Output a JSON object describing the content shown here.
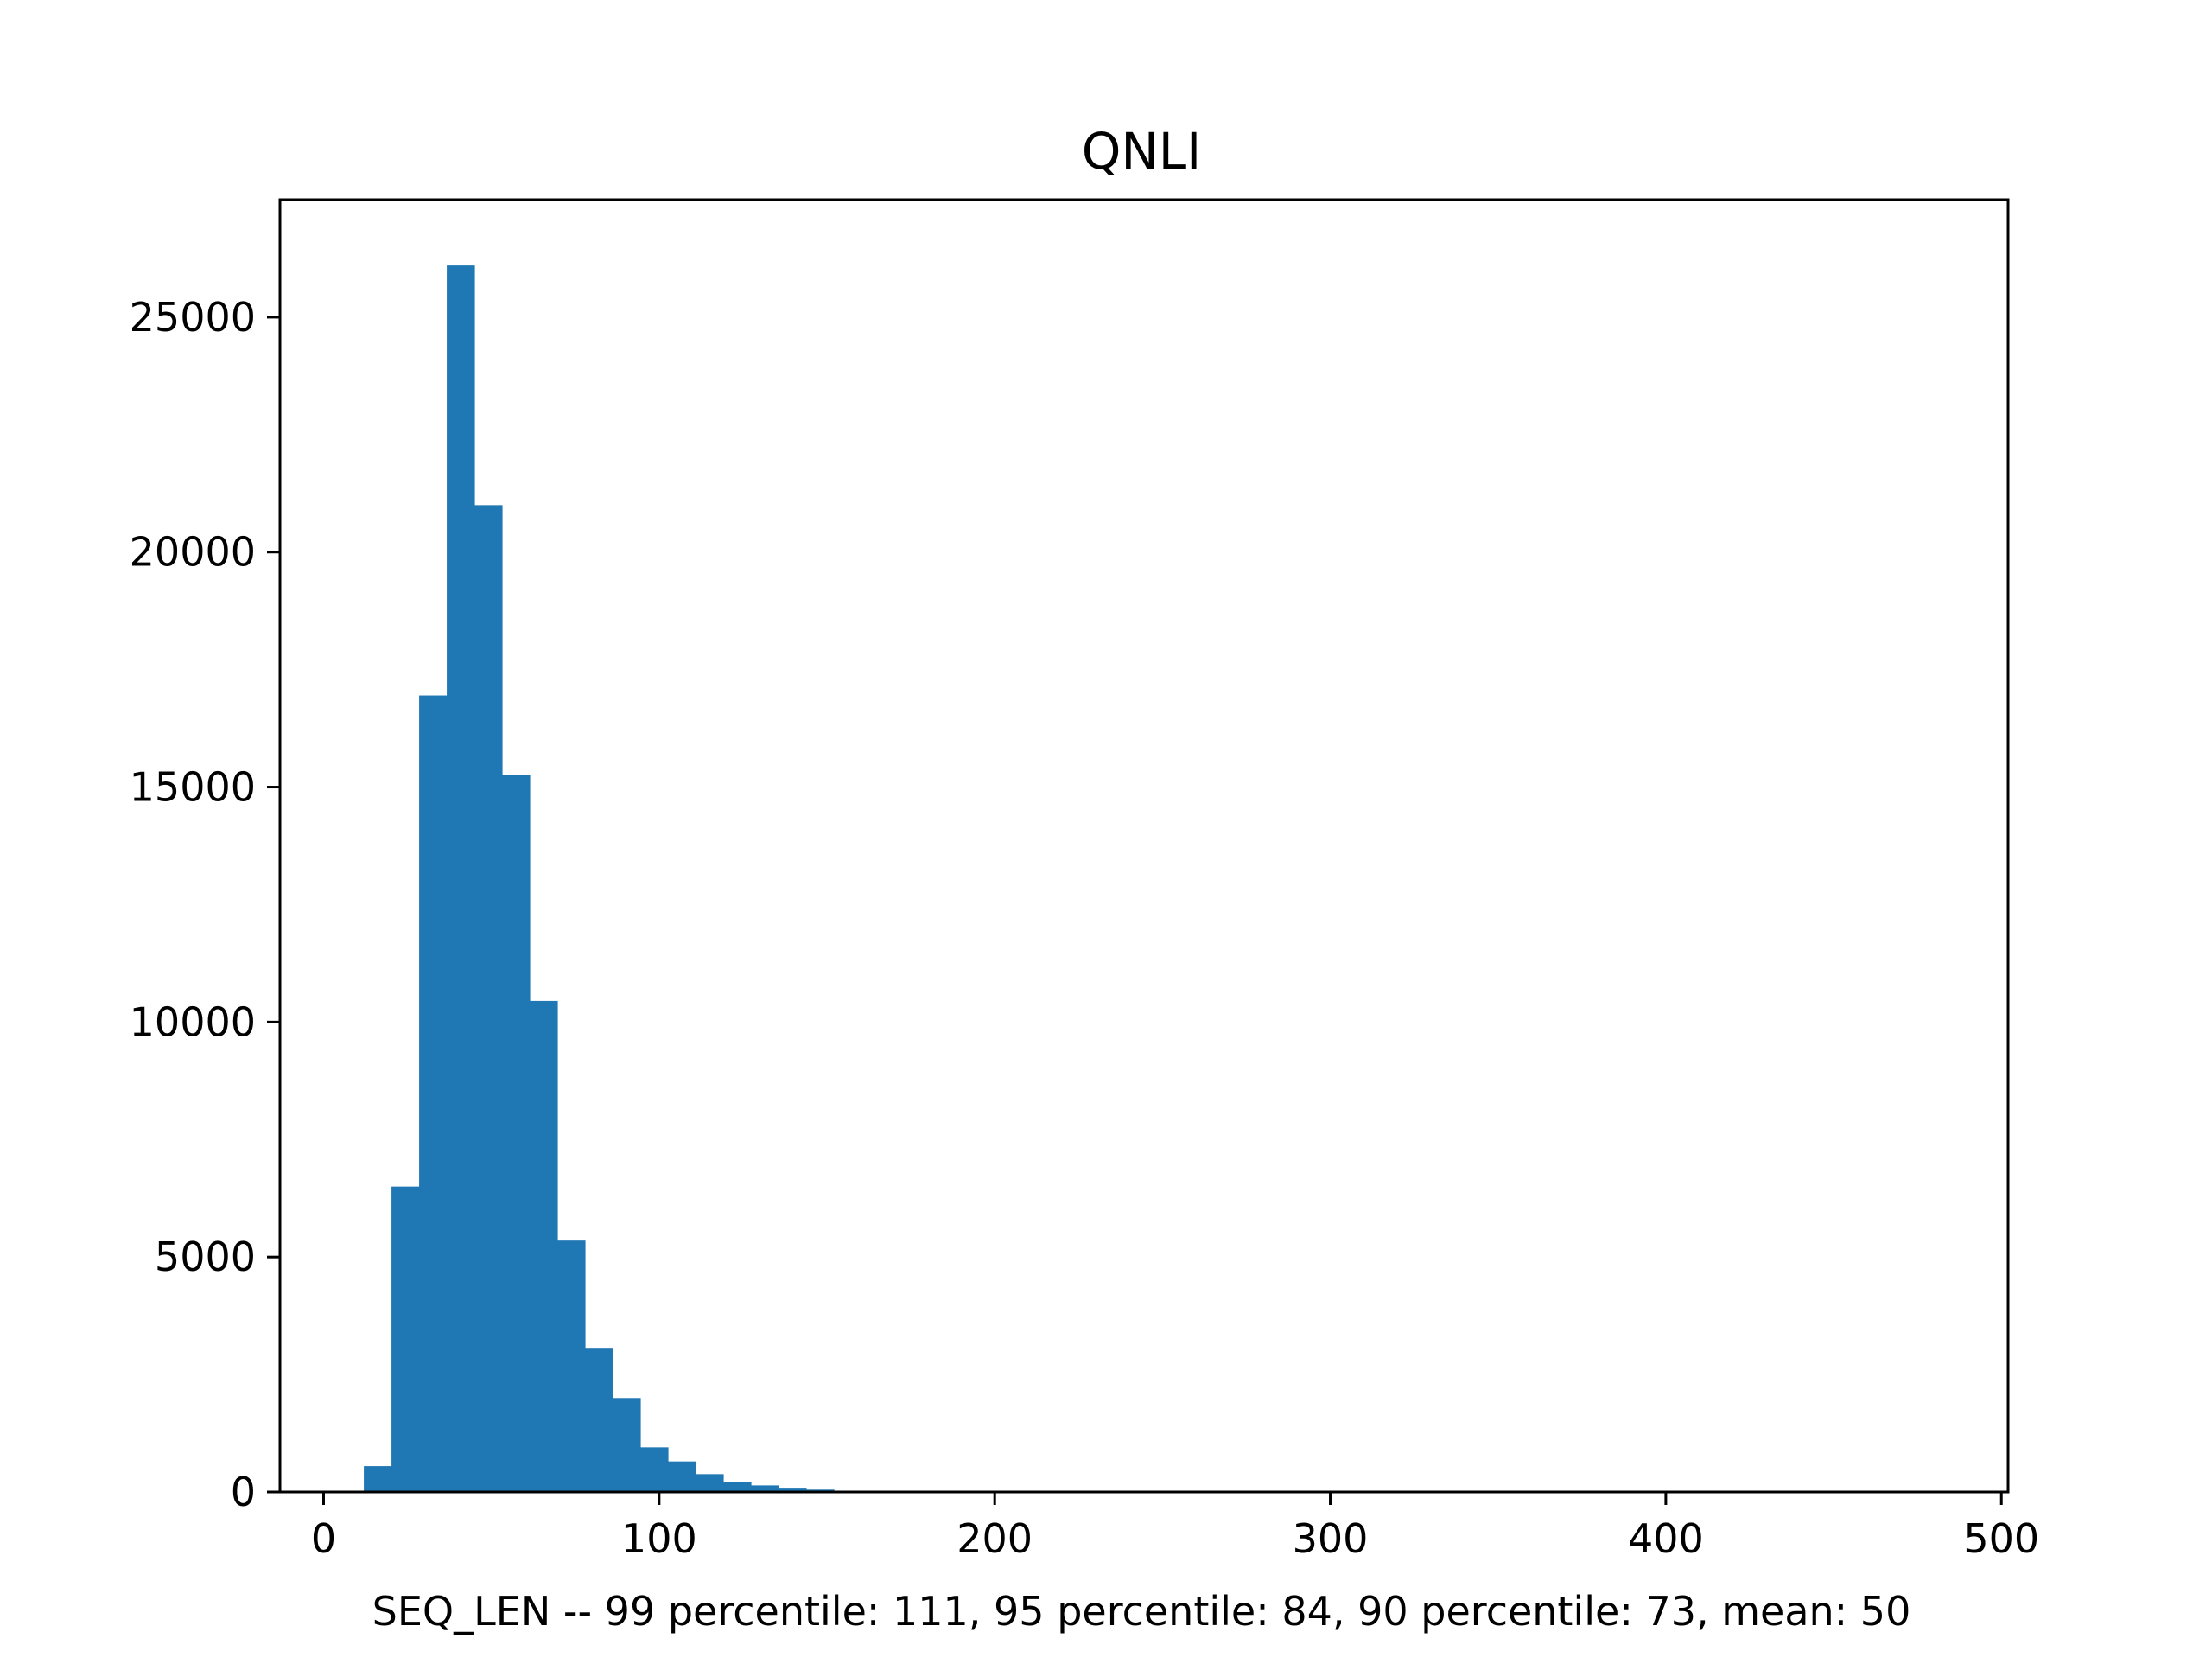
{
  "chart_data": {
    "type": "bar",
    "title": "QNLI",
    "xlabel": "SEQ_LEN  --  99 percentile: 111, 95 percentile: 84, 90 percentile: 73, mean: 50",
    "ylabel": "",
    "xlim": [
      -13,
      502
    ],
    "ylim": [
      0,
      27500
    ],
    "x_ticks": [
      0,
      100,
      200,
      300,
      400,
      500
    ],
    "y_ticks": [
      0,
      5000,
      10000,
      15000,
      20000,
      25000
    ],
    "bin_edges": [
      12,
      20.24,
      28.48,
      36.72,
      44.96,
      53.2,
      61.44,
      69.68,
      77.92,
      86.16,
      94.4,
      102.64,
      110.88,
      119.12,
      127.36,
      135.6,
      143.84,
      152.08
    ],
    "values": [
      550,
      6500,
      16950,
      26100,
      21000,
      15250,
      10450,
      5350,
      3050,
      2000,
      950,
      650,
      380,
      220,
      140,
      90,
      50
    ],
    "bar_color": "#1f77b4",
    "grid": false
  }
}
